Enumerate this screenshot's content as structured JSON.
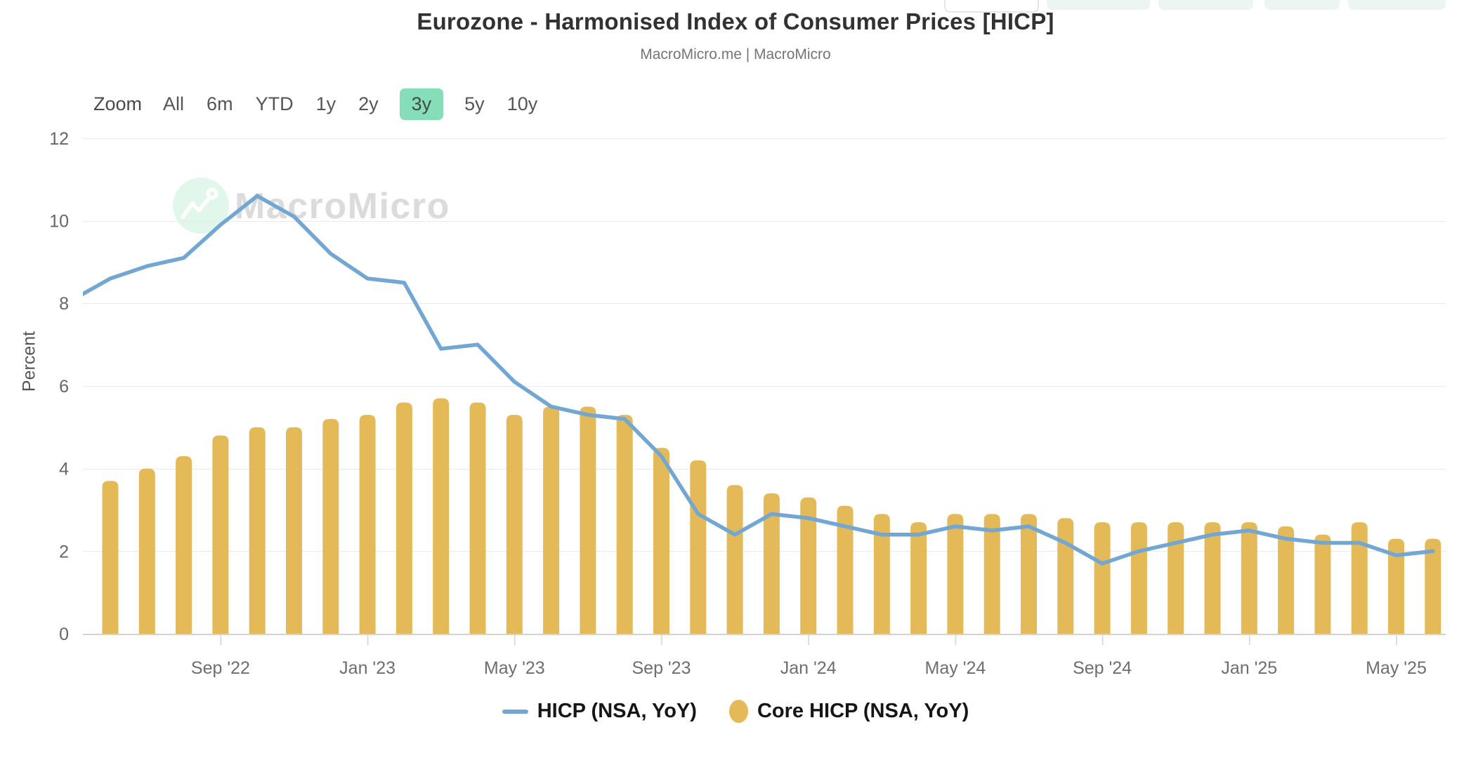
{
  "header": {
    "title": "Eurozone - Harmonised Index of Consumer Prices [HICP]",
    "subtitle": "MacroMicro.me | MacroMicro"
  },
  "toolbar": {
    "zoom_label": "Zoom",
    "ranges": [
      "All",
      "6m",
      "YTD",
      "1y",
      "2y",
      "3y",
      "5y",
      "10y"
    ],
    "selected": "3y"
  },
  "watermark": {
    "text": "MacroMicro"
  },
  "colors": {
    "line": "#73A7D3",
    "bar": "#E3BA57",
    "selected_range_bg": "#86DEB8",
    "selected_range_text": "#3E4B46",
    "grid": "#E9E9E9",
    "axis_line": "#D2D2D2",
    "tick_label": "#6E6E6E",
    "y_label": "#666666",
    "watermark_text": "#DBDBDB",
    "watermark_circle": "#E1F7EC"
  },
  "legend": {
    "items": [
      {
        "label": "HICP (NSA, YoY)",
        "swatch": "line"
      },
      {
        "label": "Core HICP (NSA, YoY)",
        "swatch": "bar"
      }
    ]
  },
  "chart_data": {
    "type": "bar+line",
    "title": "Eurozone - Harmonised Index of Consumer Prices [HICP]",
    "xlabel": "",
    "ylabel": "Percent",
    "ylim": [
      0,
      12
    ],
    "yticks": [
      0,
      2,
      4,
      6,
      8,
      10,
      12
    ],
    "grid": true,
    "legend_position": "bottom",
    "categories": [
      "Jun '22",
      "Jul '22",
      "Aug '22",
      "Sep '22",
      "Oct '22",
      "Nov '22",
      "Dec '22",
      "Jan '23",
      "Feb '23",
      "Mar '23",
      "Apr '23",
      "May '23",
      "Jun '23",
      "Jul '23",
      "Aug '23",
      "Sep '23",
      "Oct '23",
      "Nov '23",
      "Dec '23",
      "Jan '24",
      "Feb '24",
      "Mar '24",
      "Apr '24",
      "May '24",
      "Jun '24",
      "Jul '24",
      "Aug '24",
      "Sep '24",
      "Oct '24",
      "Nov '24",
      "Dec '24",
      "Jan '25",
      "Feb '25",
      "Mar '25",
      "Apr '25",
      "May '25",
      "Jun '25"
    ],
    "x_tick_labels": [
      "Sep '22",
      "Jan '23",
      "May '23",
      "Sep '23",
      "Jan '24",
      "May '24",
      "Sep '24",
      "Jan '25",
      "May '25"
    ],
    "series": [
      {
        "name": "HICP (NSA, YoY)",
        "type": "line",
        "color": "#73A7D3",
        "lead_in": 8.1,
        "values": [
          8.6,
          8.9,
          9.1,
          9.9,
          10.6,
          10.1,
          9.2,
          8.6,
          8.5,
          6.9,
          7.0,
          6.1,
          5.5,
          5.3,
          5.2,
          4.3,
          2.9,
          2.4,
          2.9,
          2.8,
          2.6,
          2.4,
          2.4,
          2.6,
          2.5,
          2.6,
          2.2,
          1.7,
          2.0,
          2.2,
          2.4,
          2.5,
          2.3,
          2.2,
          2.2,
          1.9,
          2.0
        ]
      },
      {
        "name": "Core HICP (NSA, YoY)",
        "type": "bar",
        "color": "#E3BA57",
        "values": [
          3.7,
          4.0,
          4.3,
          4.8,
          5.0,
          5.0,
          5.2,
          5.3,
          5.6,
          5.7,
          5.6,
          5.3,
          5.5,
          5.5,
          5.3,
          4.5,
          4.2,
          3.6,
          3.4,
          3.3,
          3.1,
          2.9,
          2.7,
          2.9,
          2.9,
          2.9,
          2.8,
          2.7,
          2.7,
          2.7,
          2.7,
          2.7,
          2.6,
          2.4,
          2.7,
          2.3,
          2.3
        ]
      }
    ]
  }
}
